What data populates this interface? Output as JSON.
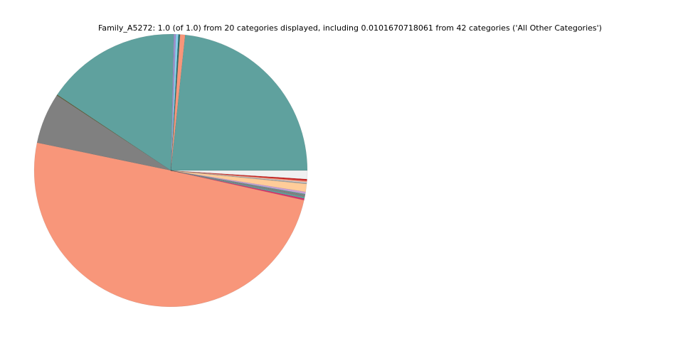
{
  "chart_data": {
    "type": "pie",
    "title": "Family_A5272: 1.0 (of 1.0) from 20 categories displayed, including 0.0101670718061 from 42 categories ('All Other Categories')",
    "start": "east",
    "direction": "counterclockwise",
    "legend": "none",
    "slices": [
      {
        "value": 0.2366,
        "color": "#5fa19e"
      },
      {
        "value": 0.006,
        "color": "#f8967a"
      },
      {
        "value": 0.002,
        "color": "#2a6e6b"
      },
      {
        "value": 0.003,
        "color": "#87ceeb"
      },
      {
        "value": 0.0025,
        "color": "#9d8fcc"
      },
      {
        "value": 0.162,
        "color": "#5fa19e"
      },
      {
        "value": 0.001,
        "color": "#5b5b33"
      },
      {
        "value": 0.061,
        "color": "#808080"
      },
      {
        "value": 0.505,
        "color": "#f8967a"
      },
      {
        "value": 0.002,
        "color": "#d6336c"
      },
      {
        "value": 0.002,
        "color": "#5fa19e"
      },
      {
        "value": 0.0025,
        "color": "#808080"
      },
      {
        "value": 0.001,
        "color": "#5fa19e"
      },
      {
        "value": 0.0025,
        "color": "#c8a0d6"
      },
      {
        "value": 0.0095,
        "color": "#ffcc99"
      },
      {
        "value": 0.0012,
        "color": "#a0a0a0"
      },
      {
        "value": 0.001,
        "color": "#e0e0e0"
      },
      {
        "value": 0.0015,
        "color": "#f8967a"
      },
      {
        "value": 0.002,
        "color": "#cc2222"
      },
      {
        "value": 0.0102,
        "color": "#f0f0f0"
      }
    ]
  }
}
